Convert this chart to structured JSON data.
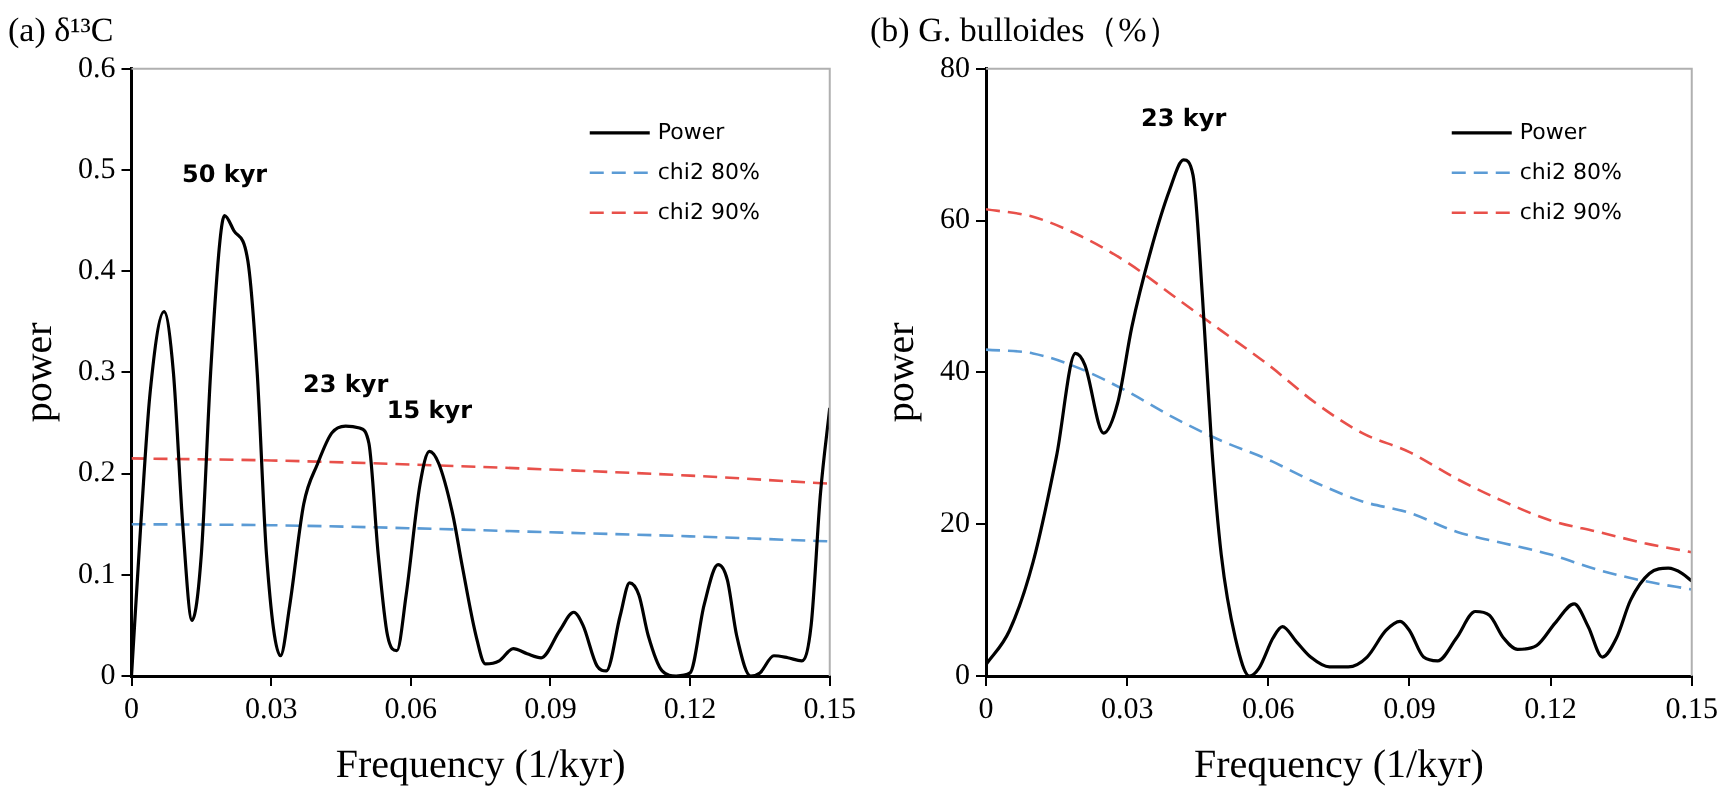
{
  "chart_data": [
    {
      "type": "line",
      "title": "(a) δ¹³C",
      "xlabel": "Frequency (1/kyr)",
      "ylabel": "power",
      "xlim": [
        0,
        0.15
      ],
      "xticks": [
        0,
        0.03,
        0.06,
        0.09,
        0.12,
        0.15
      ],
      "ylim": [
        0,
        0.6
      ],
      "yticks": [
        0,
        0.1,
        0.2,
        0.3,
        0.4,
        0.5,
        0.6
      ],
      "grid": false,
      "legend": "top right",
      "marker": "none",
      "series": [
        {
          "name": "Power",
          "color": "#000000",
          "line_style": "solid",
          "x": [
            0,
            0.002,
            0.004,
            0.007,
            0.009,
            0.011,
            0.013,
            0.015,
            0.017,
            0.019,
            0.02,
            0.022,
            0.025,
            0.027,
            0.029,
            0.032,
            0.034,
            0.037,
            0.04,
            0.043,
            0.046,
            0.049,
            0.051,
            0.053,
            0.055,
            0.057,
            0.059,
            0.062,
            0.064,
            0.066,
            0.069,
            0.071,
            0.074,
            0.076,
            0.079,
            0.082,
            0.085,
            0.088,
            0.092,
            0.095,
            0.097,
            0.1,
            0.102,
            0.105,
            0.107,
            0.109,
            0.111,
            0.114,
            0.117,
            0.12,
            0.123,
            0.126,
            0.128,
            0.13,
            0.133,
            0.135,
            0.138,
            0.141,
            0.144,
            0.146,
            0.148,
            0.15
          ],
          "values": [
            0,
            0.15,
            0.28,
            0.36,
            0.3,
            0.15,
            0.055,
            0.12,
            0.3,
            0.43,
            0.455,
            0.44,
            0.41,
            0.3,
            0.12,
            0.02,
            0.07,
            0.17,
            0.21,
            0.24,
            0.247,
            0.245,
            0.23,
            0.12,
            0.04,
            0.025,
            0.08,
            0.19,
            0.222,
            0.21,
            0.16,
            0.11,
            0.04,
            0.012,
            0.015,
            0.027,
            0.022,
            0.018,
            0.045,
            0.063,
            0.05,
            0.01,
            0.005,
            0.06,
            0.092,
            0.08,
            0.04,
            0.005,
            0,
            0.003,
            0.07,
            0.11,
            0.095,
            0.04,
            0,
            0.003,
            0.02,
            0.018,
            0.015,
            0.05,
            0.18,
            0.265
          ]
        },
        {
          "name": "chi2 80%",
          "color": "#5b9bd5",
          "line_style": "dashed",
          "x": [
            0,
            0.03,
            0.06,
            0.09,
            0.12,
            0.15
          ],
          "values": [
            0.15,
            0.149,
            0.146,
            0.142,
            0.138,
            0.133
          ]
        },
        {
          "name": "chi2 90%",
          "color": "#e8504a",
          "line_style": "dashed",
          "x": [
            0,
            0.03,
            0.06,
            0.09,
            0.12,
            0.15
          ],
          "values": [
            0.215,
            0.213,
            0.209,
            0.204,
            0.198,
            0.19
          ]
        }
      ],
      "annotations": [
        {
          "text": "50 kyr",
          "x": 0.02,
          "y": 0.455
        },
        {
          "text": "23 kyr",
          "x": 0.046,
          "y": 0.247
        },
        {
          "text": "15 kyr",
          "x": 0.064,
          "y": 0.222
        }
      ]
    },
    {
      "type": "line",
      "title": "(b) G. bulloides（%）",
      "xlabel": "Frequency (1/kyr)",
      "ylabel": "power",
      "xlim": [
        0,
        0.15
      ],
      "xticks": [
        0,
        0.03,
        0.06,
        0.09,
        0.12,
        0.15
      ],
      "ylim": [
        0,
        80
      ],
      "yticks": [
        0,
        20,
        40,
        60,
        80
      ],
      "grid": false,
      "legend": "top right",
      "marker": "none",
      "series": [
        {
          "name": "Power",
          "color": "#000000",
          "line_style": "solid",
          "x": [
            0,
            0.005,
            0.01,
            0.015,
            0.019,
            0.021,
            0.025,
            0.028,
            0.031,
            0.035,
            0.039,
            0.042,
            0.044,
            0.046,
            0.048,
            0.05,
            0.053,
            0.056,
            0.058,
            0.061,
            0.063,
            0.066,
            0.069,
            0.073,
            0.077,
            0.081,
            0.085,
            0.088,
            0.09,
            0.093,
            0.096,
            0.1,
            0.104,
            0.107,
            0.11,
            0.113,
            0.117,
            0.121,
            0.125,
            0.128,
            0.131,
            0.134,
            0.137,
            0.141,
            0.145,
            0.148,
            0.15
          ],
          "values": [
            1.5,
            6,
            15,
            29,
            42.5,
            41,
            32,
            36,
            46,
            56,
            64,
            68,
            66,
            50,
            30,
            16,
            5,
            0,
            1,
            5,
            6.5,
            4.5,
            2.5,
            1.2,
            1.2,
            2.5,
            6,
            7.2,
            6,
            2.5,
            2,
            5,
            8.5,
            8,
            5,
            3.5,
            4,
            7,
            9.5,
            6.5,
            2.5,
            5,
            10,
            13.5,
            14.2,
            13.5,
            12.5
          ]
        },
        {
          "name": "chi2 80%",
          "color": "#5b9bd5",
          "line_style": "dashed",
          "x": [
            0,
            0.01,
            0.02,
            0.03,
            0.04,
            0.05,
            0.06,
            0.07,
            0.08,
            0.09,
            0.1,
            0.11,
            0.12,
            0.13,
            0.14,
            0.15
          ],
          "values": [
            43,
            42.5,
            40.5,
            37.5,
            34,
            31,
            28.5,
            25.5,
            23,
            21.5,
            19,
            17.5,
            16,
            14,
            12.5,
            11.4
          ]
        },
        {
          "name": "chi2 90%",
          "color": "#e8504a",
          "line_style": "dashed",
          "x": [
            0,
            0.01,
            0.02,
            0.03,
            0.04,
            0.05,
            0.06,
            0.07,
            0.08,
            0.09,
            0.1,
            0.11,
            0.12,
            0.13,
            0.14,
            0.15
          ],
          "values": [
            61.5,
            60.5,
            58,
            54.5,
            50,
            45.5,
            41,
            36,
            32,
            29.5,
            26,
            23,
            20.5,
            19,
            17.5,
            16.3
          ]
        }
      ],
      "annotations": [
        {
          "text": "23 kyr",
          "x": 0.042,
          "y": 68
        }
      ]
    }
  ]
}
